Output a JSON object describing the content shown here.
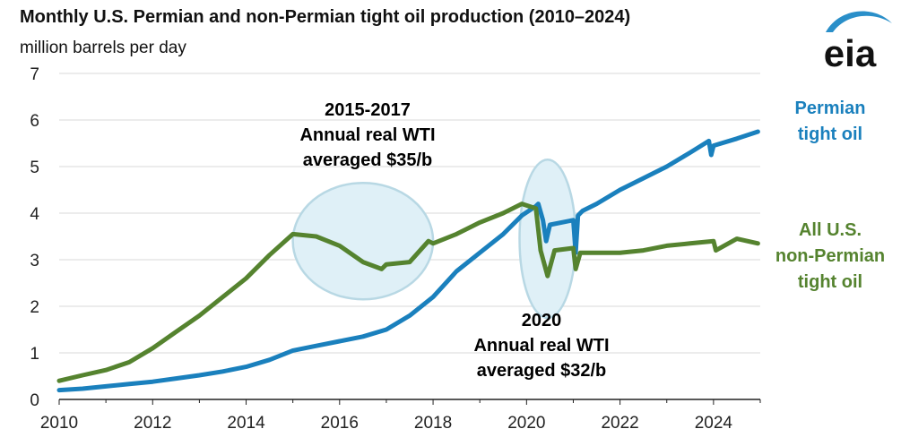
{
  "header": {
    "title": "Monthly U.S. Permian and non-Permian tight oil production (2010–2024)",
    "subtitle": "million barrels per day",
    "logo_text": "eia"
  },
  "colors": {
    "permian": "#1a80bd",
    "non_permian": "#55832f",
    "highlight_fill": "#dff0f7",
    "highlight_stroke": "#b8d8e4",
    "gridline": "#d9d9d9",
    "axis": "#222222"
  },
  "chart_data": {
    "type": "line",
    "title": "Monthly U.S. Permian and non-Permian tight oil production (2010–2024)",
    "ylabel": "million barrels per day",
    "xlim": [
      2010,
      2025
    ],
    "ylim": [
      0,
      7
    ],
    "x_ticks": [
      2010,
      2012,
      2014,
      2016,
      2018,
      2020,
      2022,
      2024
    ],
    "x_tick_labels": [
      "2010",
      "2012",
      "2014",
      "2016",
      "2018",
      "2020",
      "2022",
      "2024"
    ],
    "y_ticks": [
      0,
      1,
      2,
      3,
      4,
      5,
      6,
      7
    ],
    "y_tick_labels": [
      "0",
      "1",
      "2",
      "3",
      "4",
      "5",
      "6",
      "7"
    ],
    "grid": "horizontal",
    "series": [
      {
        "name": "Permian tight oil",
        "label_lines": [
          "Permian",
          "tight oil"
        ],
        "x": [
          2010.0,
          2010.5,
          2011.0,
          2011.5,
          2012.0,
          2012.5,
          2013.0,
          2013.5,
          2014.0,
          2014.5,
          2015.0,
          2015.5,
          2016.0,
          2016.5,
          2017.0,
          2017.5,
          2018.0,
          2018.5,
          2019.0,
          2019.5,
          2019.9,
          2020.2,
          2020.25,
          2020.35,
          2020.42,
          2020.5,
          2021.0,
          2021.05,
          2021.1,
          2021.2,
          2021.5,
          2022.0,
          2022.5,
          2023.0,
          2023.5,
          2023.9,
          2023.95,
          2024.0,
          2024.5,
          2024.95
        ],
        "values": [
          0.2,
          0.23,
          0.28,
          0.33,
          0.38,
          0.45,
          0.52,
          0.6,
          0.7,
          0.85,
          1.05,
          1.15,
          1.25,
          1.35,
          1.5,
          1.8,
          2.2,
          2.75,
          3.15,
          3.55,
          3.95,
          4.15,
          4.2,
          3.85,
          3.4,
          3.75,
          3.85,
          3.15,
          3.95,
          4.05,
          4.2,
          4.5,
          4.75,
          5.0,
          5.3,
          5.55,
          5.25,
          5.45,
          5.6,
          5.75
        ]
      },
      {
        "name": "All U.S. non-Permian tight oil",
        "label_lines": [
          "All U.S.",
          "non-Permian",
          "tight oil"
        ],
        "x": [
          2010.0,
          2010.5,
          2011.0,
          2011.5,
          2012.0,
          2012.5,
          2013.0,
          2013.5,
          2014.0,
          2014.5,
          2015.0,
          2015.5,
          2016.0,
          2016.5,
          2016.9,
          2017.0,
          2017.5,
          2017.9,
          2018.0,
          2018.5,
          2019.0,
          2019.5,
          2019.9,
          2020.2,
          2020.3,
          2020.45,
          2020.6,
          2021.0,
          2021.05,
          2021.15,
          2021.5,
          2022.0,
          2022.5,
          2023.0,
          2023.5,
          2024.0,
          2024.05,
          2024.5,
          2024.95
        ],
        "values": [
          0.4,
          0.52,
          0.63,
          0.8,
          1.1,
          1.45,
          1.8,
          2.2,
          2.6,
          3.1,
          3.55,
          3.5,
          3.3,
          2.95,
          2.8,
          2.9,
          2.95,
          3.4,
          3.35,
          3.55,
          3.8,
          4.0,
          4.2,
          4.1,
          3.2,
          2.65,
          3.2,
          3.25,
          2.8,
          3.15,
          3.15,
          3.15,
          3.2,
          3.3,
          3.35,
          3.4,
          3.2,
          3.45,
          3.35
        ]
      }
    ],
    "highlights": [
      {
        "cx": 2016.5,
        "cy": 3.4,
        "rx": 1.5,
        "ry": 1.25,
        "annotation_lines": [
          "2015-2017",
          "Annual real WTI",
          "averaged $35/b"
        ]
      },
      {
        "cx": 2020.45,
        "cy": 3.45,
        "rx": 0.6,
        "ry": 1.7,
        "annotation_lines": [
          "2020",
          "Annual real WTI",
          "averaged $32/b"
        ]
      }
    ]
  }
}
